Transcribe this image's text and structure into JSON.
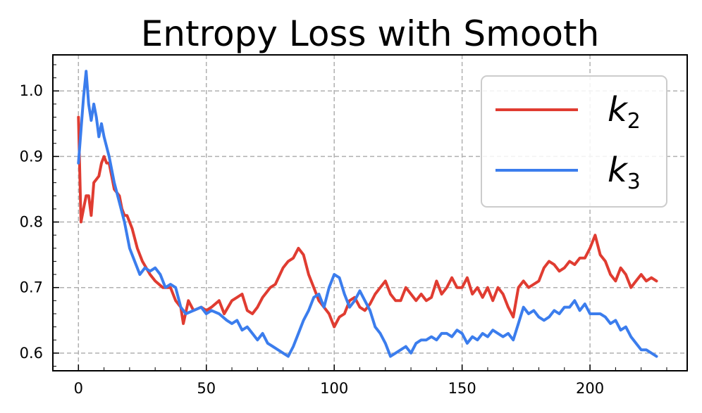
{
  "chart_data": {
    "type": "line",
    "title": "Entropy Loss with Smooth",
    "xlabel": "",
    "ylabel": "",
    "xlim": [
      -10,
      238
    ],
    "ylim": [
      0.573,
      1.055
    ],
    "xticks": [
      0,
      50,
      100,
      150,
      200
    ],
    "yticks": [
      0.6,
      0.7,
      0.8,
      0.9,
      1.0
    ],
    "xtick_labels": [
      "0",
      "50",
      "100",
      "150",
      "200"
    ],
    "ytick_labels": [
      "0.6",
      "0.7",
      "0.8",
      "0.9",
      "1.0"
    ],
    "grid": true,
    "legend": {
      "position": "top-right"
    },
    "series": [
      {
        "name": "k2",
        "label_base": "k",
        "label_sub": "2",
        "color": "#e03c31",
        "points": [
          [
            0,
            0.96
          ],
          [
            1,
            0.8
          ],
          [
            2,
            0.82
          ],
          [
            3,
            0.84
          ],
          [
            4,
            0.84
          ],
          [
            5,
            0.81
          ],
          [
            6,
            0.86
          ],
          [
            8,
            0.87
          ],
          [
            9,
            0.89
          ],
          [
            10,
            0.9
          ],
          [
            11,
            0.89
          ],
          [
            12,
            0.89
          ],
          [
            13,
            0.87
          ],
          [
            14,
            0.85
          ],
          [
            16,
            0.84
          ],
          [
            17,
            0.82
          ],
          [
            18,
            0.81
          ],
          [
            19,
            0.81
          ],
          [
            21,
            0.79
          ],
          [
            23,
            0.76
          ],
          [
            25,
            0.74
          ],
          [
            28,
            0.72
          ],
          [
            30,
            0.71
          ],
          [
            33,
            0.7
          ],
          [
            36,
            0.7
          ],
          [
            38,
            0.68
          ],
          [
            40,
            0.67
          ],
          [
            41,
            0.645
          ],
          [
            43,
            0.68
          ],
          [
            45,
            0.665
          ],
          [
            48,
            0.67
          ],
          [
            50,
            0.665
          ],
          [
            52,
            0.67
          ],
          [
            55,
            0.68
          ],
          [
            57,
            0.66
          ],
          [
            60,
            0.68
          ],
          [
            62,
            0.685
          ],
          [
            64,
            0.69
          ],
          [
            66,
            0.665
          ],
          [
            68,
            0.66
          ],
          [
            70,
            0.67
          ],
          [
            72,
            0.685
          ],
          [
            75,
            0.7
          ],
          [
            77,
            0.705
          ],
          [
            80,
            0.73
          ],
          [
            82,
            0.74
          ],
          [
            84,
            0.745
          ],
          [
            86,
            0.76
          ],
          [
            88,
            0.75
          ],
          [
            90,
            0.72
          ],
          [
            92,
            0.7
          ],
          [
            94,
            0.68
          ],
          [
            96,
            0.67
          ],
          [
            98,
            0.66
          ],
          [
            100,
            0.64
          ],
          [
            102,
            0.655
          ],
          [
            104,
            0.66
          ],
          [
            106,
            0.68
          ],
          [
            108,
            0.685
          ],
          [
            110,
            0.67
          ],
          [
            112,
            0.665
          ],
          [
            114,
            0.675
          ],
          [
            116,
            0.69
          ],
          [
            118,
            0.7
          ],
          [
            120,
            0.71
          ],
          [
            122,
            0.69
          ],
          [
            124,
            0.68
          ],
          [
            126,
            0.68
          ],
          [
            128,
            0.7
          ],
          [
            130,
            0.69
          ],
          [
            132,
            0.68
          ],
          [
            134,
            0.69
          ],
          [
            136,
            0.68
          ],
          [
            138,
            0.685
          ],
          [
            140,
            0.71
          ],
          [
            142,
            0.69
          ],
          [
            144,
            0.7
          ],
          [
            146,
            0.715
          ],
          [
            148,
            0.7
          ],
          [
            150,
            0.7
          ],
          [
            152,
            0.715
          ],
          [
            154,
            0.69
          ],
          [
            156,
            0.7
          ],
          [
            158,
            0.685
          ],
          [
            160,
            0.7
          ],
          [
            162,
            0.68
          ],
          [
            164,
            0.7
          ],
          [
            166,
            0.69
          ],
          [
            168,
            0.67
          ],
          [
            170,
            0.655
          ],
          [
            172,
            0.7
          ],
          [
            174,
            0.71
          ],
          [
            176,
            0.7
          ],
          [
            178,
            0.705
          ],
          [
            180,
            0.71
          ],
          [
            182,
            0.73
          ],
          [
            184,
            0.74
          ],
          [
            186,
            0.735
          ],
          [
            188,
            0.725
          ],
          [
            190,
            0.73
          ],
          [
            192,
            0.74
          ],
          [
            194,
            0.735
          ],
          [
            196,
            0.745
          ],
          [
            198,
            0.745
          ],
          [
            200,
            0.76
          ],
          [
            202,
            0.78
          ],
          [
            204,
            0.75
          ],
          [
            206,
            0.74
          ],
          [
            208,
            0.72
          ],
          [
            210,
            0.71
          ],
          [
            212,
            0.73
          ],
          [
            214,
            0.72
          ],
          [
            216,
            0.7
          ],
          [
            218,
            0.71
          ],
          [
            220,
            0.72
          ],
          [
            222,
            0.71
          ],
          [
            224,
            0.715
          ],
          [
            226,
            0.71
          ]
        ]
      },
      {
        "name": "k3",
        "label_base": "k",
        "label_sub": "3",
        "color": "#3b7ded",
        "points": [
          [
            0,
            0.89
          ],
          [
            1,
            0.94
          ],
          [
            2,
            0.99
          ],
          [
            3,
            1.03
          ],
          [
            4,
            0.98
          ],
          [
            5,
            0.955
          ],
          [
            6,
            0.98
          ],
          [
            7,
            0.96
          ],
          [
            8,
            0.93
          ],
          [
            9,
            0.95
          ],
          [
            10,
            0.93
          ],
          [
            12,
            0.9
          ],
          [
            14,
            0.86
          ],
          [
            16,
            0.83
          ],
          [
            18,
            0.8
          ],
          [
            20,
            0.76
          ],
          [
            22,
            0.74
          ],
          [
            24,
            0.72
          ],
          [
            26,
            0.73
          ],
          [
            28,
            0.725
          ],
          [
            30,
            0.73
          ],
          [
            32,
            0.72
          ],
          [
            34,
            0.7
          ],
          [
            36,
            0.705
          ],
          [
            38,
            0.7
          ],
          [
            40,
            0.67
          ],
          [
            42,
            0.66
          ],
          [
            45,
            0.665
          ],
          [
            48,
            0.67
          ],
          [
            50,
            0.66
          ],
          [
            52,
            0.665
          ],
          [
            55,
            0.66
          ],
          [
            58,
            0.65
          ],
          [
            60,
            0.645
          ],
          [
            62,
            0.65
          ],
          [
            64,
            0.635
          ],
          [
            66,
            0.64
          ],
          [
            68,
            0.63
          ],
          [
            70,
            0.62
          ],
          [
            72,
            0.63
          ],
          [
            74,
            0.615
          ],
          [
            76,
            0.61
          ],
          [
            78,
            0.605
          ],
          [
            80,
            0.6
          ],
          [
            82,
            0.595
          ],
          [
            84,
            0.61
          ],
          [
            86,
            0.63
          ],
          [
            88,
            0.65
          ],
          [
            90,
            0.665
          ],
          [
            92,
            0.685
          ],
          [
            94,
            0.69
          ],
          [
            96,
            0.67
          ],
          [
            98,
            0.7
          ],
          [
            100,
            0.72
          ],
          [
            102,
            0.715
          ],
          [
            104,
            0.69
          ],
          [
            106,
            0.67
          ],
          [
            108,
            0.68
          ],
          [
            110,
            0.695
          ],
          [
            112,
            0.68
          ],
          [
            114,
            0.665
          ],
          [
            116,
            0.64
          ],
          [
            118,
            0.63
          ],
          [
            120,
            0.615
          ],
          [
            122,
            0.595
          ],
          [
            124,
            0.6
          ],
          [
            126,
            0.605
          ],
          [
            128,
            0.61
          ],
          [
            130,
            0.6
          ],
          [
            132,
            0.615
          ],
          [
            134,
            0.62
          ],
          [
            136,
            0.62
          ],
          [
            138,
            0.625
          ],
          [
            140,
            0.62
          ],
          [
            142,
            0.63
          ],
          [
            144,
            0.63
          ],
          [
            146,
            0.625
          ],
          [
            148,
            0.635
          ],
          [
            150,
            0.63
          ],
          [
            152,
            0.615
          ],
          [
            154,
            0.625
          ],
          [
            156,
            0.62
          ],
          [
            158,
            0.63
          ],
          [
            160,
            0.625
          ],
          [
            162,
            0.635
          ],
          [
            164,
            0.63
          ],
          [
            166,
            0.625
          ],
          [
            168,
            0.63
          ],
          [
            170,
            0.62
          ],
          [
            172,
            0.645
          ],
          [
            174,
            0.67
          ],
          [
            176,
            0.66
          ],
          [
            178,
            0.665
          ],
          [
            180,
            0.655
          ],
          [
            182,
            0.65
          ],
          [
            184,
            0.655
          ],
          [
            186,
            0.665
          ],
          [
            188,
            0.66
          ],
          [
            190,
            0.67
          ],
          [
            192,
            0.67
          ],
          [
            194,
            0.68
          ],
          [
            196,
            0.665
          ],
          [
            198,
            0.675
          ],
          [
            200,
            0.66
          ],
          [
            202,
            0.66
          ],
          [
            204,
            0.66
          ],
          [
            206,
            0.655
          ],
          [
            208,
            0.645
          ],
          [
            210,
            0.65
          ],
          [
            212,
            0.635
          ],
          [
            214,
            0.64
          ],
          [
            216,
            0.625
          ],
          [
            218,
            0.615
          ],
          [
            220,
            0.605
          ],
          [
            222,
            0.605
          ],
          [
            224,
            0.6
          ],
          [
            226,
            0.595
          ]
        ]
      }
    ]
  }
}
